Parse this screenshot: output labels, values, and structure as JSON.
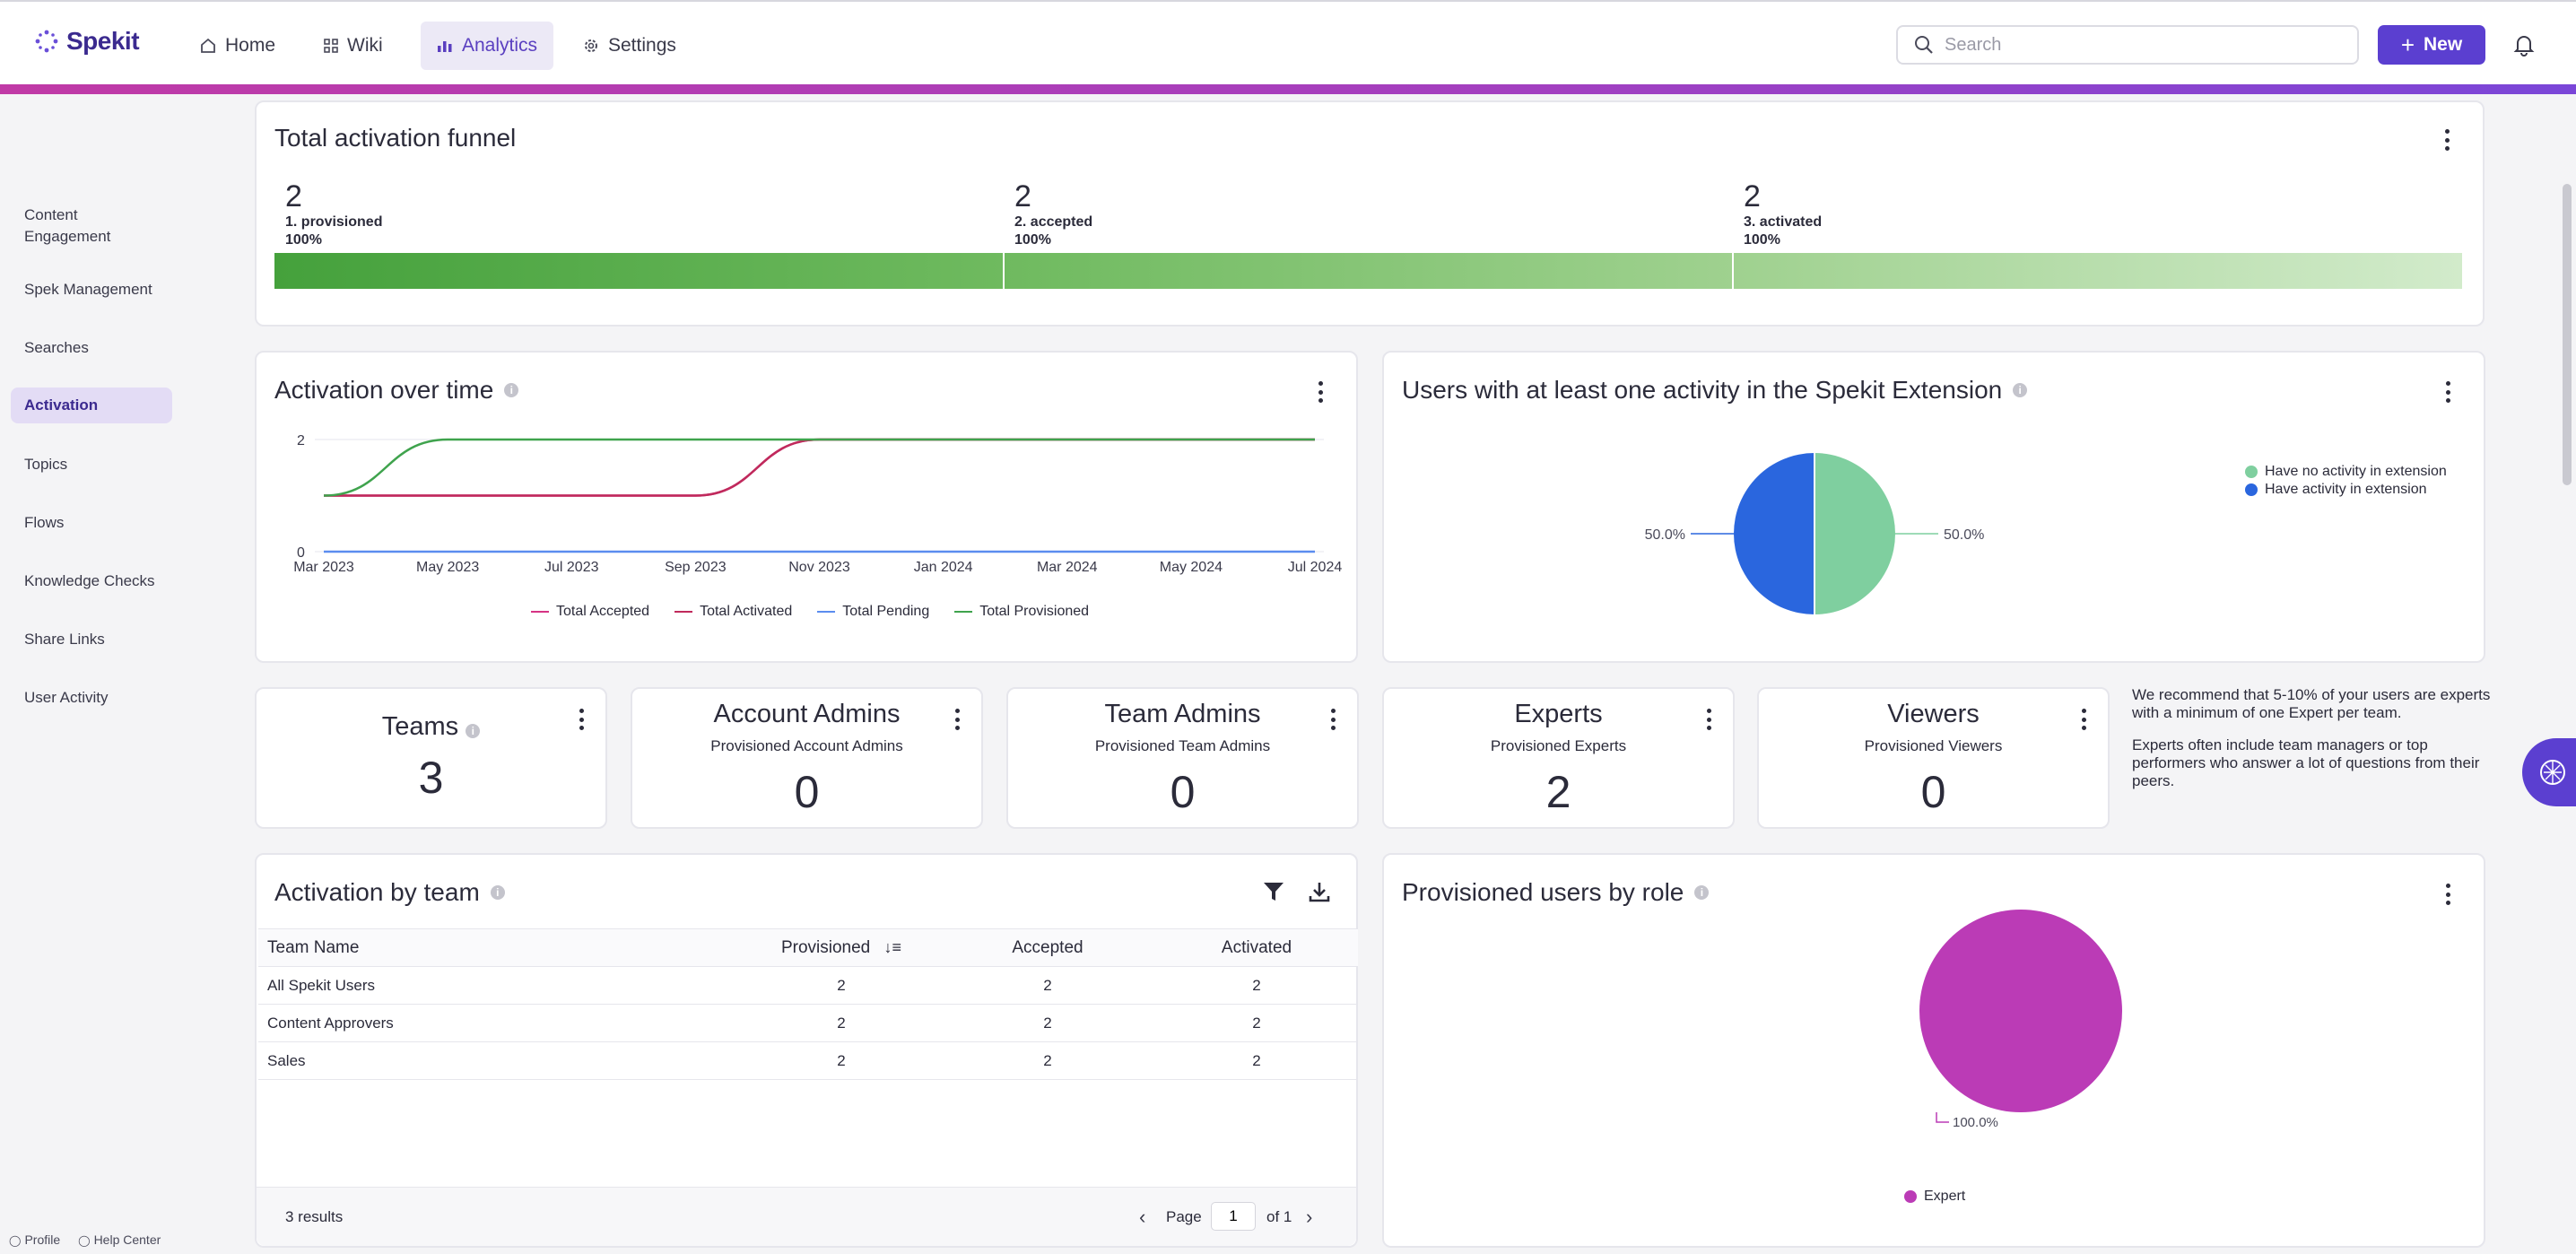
{
  "app": {
    "logo_text": "Spekit"
  },
  "nav": {
    "items": [
      {
        "label": "Home",
        "icon": "home-icon"
      },
      {
        "label": "Wiki",
        "icon": "grid-icon"
      },
      {
        "label": "Analytics",
        "icon": "bar-chart-icon",
        "active": true
      },
      {
        "label": "Settings",
        "icon": "gear-icon"
      }
    ],
    "search_placeholder": "Search",
    "new_label": "New"
  },
  "sidebar": {
    "items": [
      "Content\nEngagement",
      "Spek Management",
      "Searches",
      "Activation",
      "Topics",
      "Flows",
      "Knowledge Checks",
      "Share Links",
      "User Activity"
    ],
    "active": "Activation",
    "footer": {
      "profile": "Profile",
      "help": "Help Center"
    }
  },
  "funnel": {
    "title": "Total activation funnel",
    "stages": [
      {
        "value": "2",
        "label": "1. provisioned",
        "pct": "100%"
      },
      {
        "value": "2",
        "label": "2. accepted",
        "pct": "100%"
      },
      {
        "value": "2",
        "label": "3. activated",
        "pct": "100%"
      }
    ]
  },
  "activation_over_time": {
    "title": "Activation over time",
    "legend": [
      "Total Accepted",
      "Total Activated",
      "Total Pending",
      "Total Provisioned"
    ]
  },
  "extension_activity": {
    "title": "Users with at least one activity in the Spekit Extension",
    "legend": [
      "Have no activity in extension",
      "Have activity in extension"
    ],
    "labels": [
      "50.0%",
      "50.0%"
    ]
  },
  "stats": {
    "teams": {
      "title": "Teams",
      "value": "3"
    },
    "account_admins": {
      "title": "Account Admins",
      "sub": "Provisioned Account Admins",
      "value": "0"
    },
    "team_admins": {
      "title": "Team Admins",
      "sub": "Provisioned Team Admins",
      "value": "0"
    },
    "experts": {
      "title": "Experts",
      "sub": "Provisioned Experts",
      "value": "2"
    },
    "viewers": {
      "title": "Viewers",
      "sub": "Provisioned Viewers",
      "value": "0"
    }
  },
  "recommendation": {
    "p1": "We recommend that 5-10% of your users are experts with a minimum of one Expert per team.",
    "p2": "Experts often include team managers or top performers who answer a lot of questions from their peers."
  },
  "activation_by_team": {
    "title": "Activation by team",
    "columns": [
      "Team Name",
      "Provisioned",
      "Accepted",
      "Activated"
    ],
    "rows": [
      {
        "team": "All Spekit Users",
        "provisioned": "2",
        "accepted": "2",
        "activated": "2"
      },
      {
        "team": "Content Approvers",
        "provisioned": "2",
        "accepted": "2",
        "activated": "2"
      },
      {
        "team": "Sales",
        "provisioned": "2",
        "accepted": "2",
        "activated": "2"
      }
    ],
    "results": "3 results",
    "page_label": "Page",
    "page_value": "1",
    "of_label": "of 1"
  },
  "provisioned_by_role": {
    "title": "Provisioned users by role",
    "label": "100.0%",
    "legend": [
      "Expert"
    ]
  },
  "colors": {
    "accent": "#5b3fd0",
    "accepted": "#d63384",
    "activated": "#c02a5c",
    "pending": "#5b8def",
    "provisioned": "#3fa34d",
    "no_activity": "#7fcf9f",
    "activity": "#2a66de",
    "expert": "#bb3bb6"
  },
  "chart_data": [
    {
      "type": "line",
      "title": "Activation over time",
      "x": [
        "Mar 2023",
        "May 2023",
        "Jul 2023",
        "Sep 2023",
        "Nov 2023",
        "Jan 2024",
        "Mar 2024",
        "May 2024",
        "Jul 2024"
      ],
      "ylim": [
        0,
        2
      ],
      "yticks": [
        "0",
        "2"
      ],
      "series": [
        {
          "name": "Total Accepted",
          "values": [
            1,
            1,
            1,
            1,
            2,
            2,
            2,
            2,
            2
          ]
        },
        {
          "name": "Total Activated",
          "values": [
            1,
            1,
            1,
            1,
            2,
            2,
            2,
            2,
            2
          ]
        },
        {
          "name": "Total Pending",
          "values": [
            0,
            0,
            0,
            0,
            0,
            0,
            0,
            0,
            0
          ]
        },
        {
          "name": "Total Provisioned",
          "values": [
            1,
            2,
            2,
            2,
            2,
            2,
            2,
            2,
            2
          ]
        }
      ]
    },
    {
      "type": "pie",
      "title": "Users with at least one activity in the Spekit Extension",
      "categories": [
        "Have no activity in extension",
        "Have activity in extension"
      ],
      "values": [
        50.0,
        50.0
      ]
    },
    {
      "type": "pie",
      "title": "Provisioned users by role",
      "categories": [
        "Expert"
      ],
      "values": [
        100.0
      ]
    }
  ]
}
